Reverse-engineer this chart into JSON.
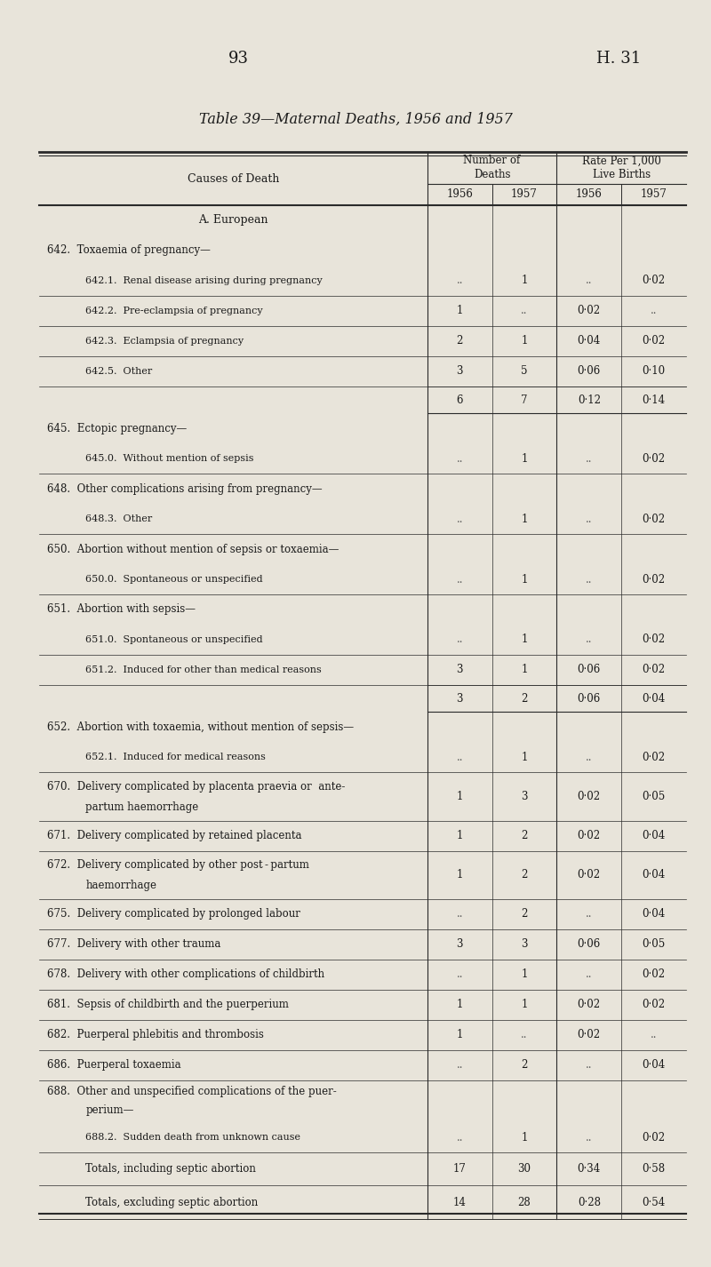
{
  "page_numbers": [
    "93",
    "H. 31"
  ],
  "title": "Table 39—Maternal Deaths, 1956 and 1957",
  "header_col": "Causes of Death",
  "bg_color": "#e8e4da",
  "col_years": [
    "1956",
    "1957",
    "1956",
    "1957"
  ],
  "rows": [
    {
      "type": "section_header",
      "text": "A. European"
    },
    {
      "type": "group_header",
      "code": "642.",
      "text": "Toxaemia of pregnancy—"
    },
    {
      "type": "data",
      "code": "642.1.",
      "text": "Renal disease arising during pregnancy",
      "v1956": "",
      "v1957": "1",
      "r1956": "",
      "r1957": "0·02"
    },
    {
      "type": "data",
      "code": "642.2.",
      "text": "Pre-eclampsia of pregnancy",
      "v1956": "1",
      "v1957": "",
      "r1956": "0·02",
      "r1957": ""
    },
    {
      "type": "data",
      "code": "642.3.",
      "text": "Eclampsia of pregnancy",
      "v1956": "2",
      "v1957": "1",
      "r1956": "0·04",
      "r1957": "0·02"
    },
    {
      "type": "data",
      "code": "642.5.",
      "text": "Other",
      "v1956": "3",
      "v1957": "5",
      "r1956": "0·06",
      "r1957": "0·10"
    },
    {
      "type": "subtotal",
      "v1956": "6",
      "v1957": "7",
      "r1956": "0·12",
      "r1957": "0·14"
    },
    {
      "type": "group_header",
      "code": "645.",
      "text": "Ectopic pregnancy—"
    },
    {
      "type": "data",
      "code": "645.0.",
      "text": "Without mention of sepsis",
      "v1956": "",
      "v1957": "1",
      "r1956": "",
      "r1957": "0·02"
    },
    {
      "type": "group_header",
      "code": "648.",
      "text": "Other complications arising from pregnancy—"
    },
    {
      "type": "data",
      "code": "648.3.",
      "text": "Other",
      "v1956": "",
      "v1957": "1",
      "r1956": "",
      "r1957": "0·02"
    },
    {
      "type": "group_header",
      "code": "650.",
      "text": "Abortion without mention of sepsis or toxaemia—"
    },
    {
      "type": "data",
      "code": "650.0.",
      "text": "Spontaneous or unspecified",
      "v1956": "",
      "v1957": "1",
      "r1956": "",
      "r1957": "0·02"
    },
    {
      "type": "group_header",
      "code": "651.",
      "text": "Abortion with sepsis—"
    },
    {
      "type": "data",
      "code": "651.0.",
      "text": "Spontaneous or unspecified",
      "v1956": "",
      "v1957": "1",
      "r1956": "",
      "r1957": "0·02"
    },
    {
      "type": "data",
      "code": "651.2.",
      "text": "Induced for other than medical reasons",
      "v1956": "3",
      "v1957": "1",
      "r1956": "0·06",
      "r1957": "0·02"
    },
    {
      "type": "subtotal",
      "v1956": "3",
      "v1957": "2",
      "r1956": "0·06",
      "r1957": "0·04"
    },
    {
      "type": "group_header",
      "code": "652.",
      "text": "Abortion with toxaemia, without mention of sepsis—"
    },
    {
      "type": "data",
      "code": "652.1.",
      "text": "Induced for medical reasons",
      "v1956": "",
      "v1957": "1",
      "r1956": "",
      "r1957": "0·02"
    },
    {
      "type": "tworow_group",
      "code": "670.",
      "line1": "Delivery complicated by placenta praevia or  ante-",
      "line2": "partum haemorrhage",
      "v1956": "1",
      "v1957": "3",
      "r1956": "0·02",
      "r1957": "0·05"
    },
    {
      "type": "simple",
      "code": "671.",
      "text": "Delivery complicated by retained placenta",
      "v1956": "1",
      "v1957": "2",
      "r1956": "0·02",
      "r1957": "0·04"
    },
    {
      "type": "tworow_group",
      "code": "672.",
      "line1": "Delivery complicated by other post - partum",
      "line2": "haemorrhage",
      "v1956": "1",
      "v1957": "2",
      "r1956": "0·02",
      "r1957": "0·04"
    },
    {
      "type": "simple",
      "code": "675.",
      "text": "Delivery complicated by prolonged labour",
      "v1956": "",
      "v1957": "2",
      "r1956": "",
      "r1957": "0·04"
    },
    {
      "type": "simple",
      "code": "677.",
      "text": "Delivery with other trauma",
      "v1956": "3",
      "v1957": "3",
      "r1956": "0·06",
      "r1957": "0·05"
    },
    {
      "type": "simple",
      "code": "678.",
      "text": "Delivery with other complications of childbirth",
      "v1956": "",
      "v1957": "1",
      "r1956": "",
      "r1957": "0·02"
    },
    {
      "type": "simple",
      "code": "681.",
      "text": "Sepsis of childbirth and the puerperium",
      "v1956": "1",
      "v1957": "1",
      "r1956": "0·02",
      "r1957": "0·02"
    },
    {
      "type": "simple",
      "code": "682.",
      "text": "Puerperal phlebitis and thrombosis",
      "v1956": "1",
      "v1957": "",
      "r1956": "0·02",
      "r1957": ""
    },
    {
      "type": "simple",
      "code": "686.",
      "text": "Puerperal toxaemia",
      "v1956": "",
      "v1957": "2",
      "r1956": "",
      "r1957": "0·04"
    },
    {
      "type": "tworow_group_header",
      "code": "688.",
      "line1": "Other and unspecified complications of the puer-",
      "line2": "perium—"
    },
    {
      "type": "data",
      "code": "688.2.",
      "text": "Sudden death from unknown cause",
      "v1956": "",
      "v1957": "1",
      "r1956": "",
      "r1957": "0·02"
    },
    {
      "type": "total",
      "text": "Totals, including septic abortion",
      "v1956": "17",
      "v1957": "30",
      "r1956": "0·34",
      "r1957": "0·58"
    },
    {
      "type": "total",
      "text": "Totals, excluding septic abortion",
      "v1956": "14",
      "v1957": "28",
      "r1956": "0·28",
      "r1957": "0·54"
    }
  ]
}
